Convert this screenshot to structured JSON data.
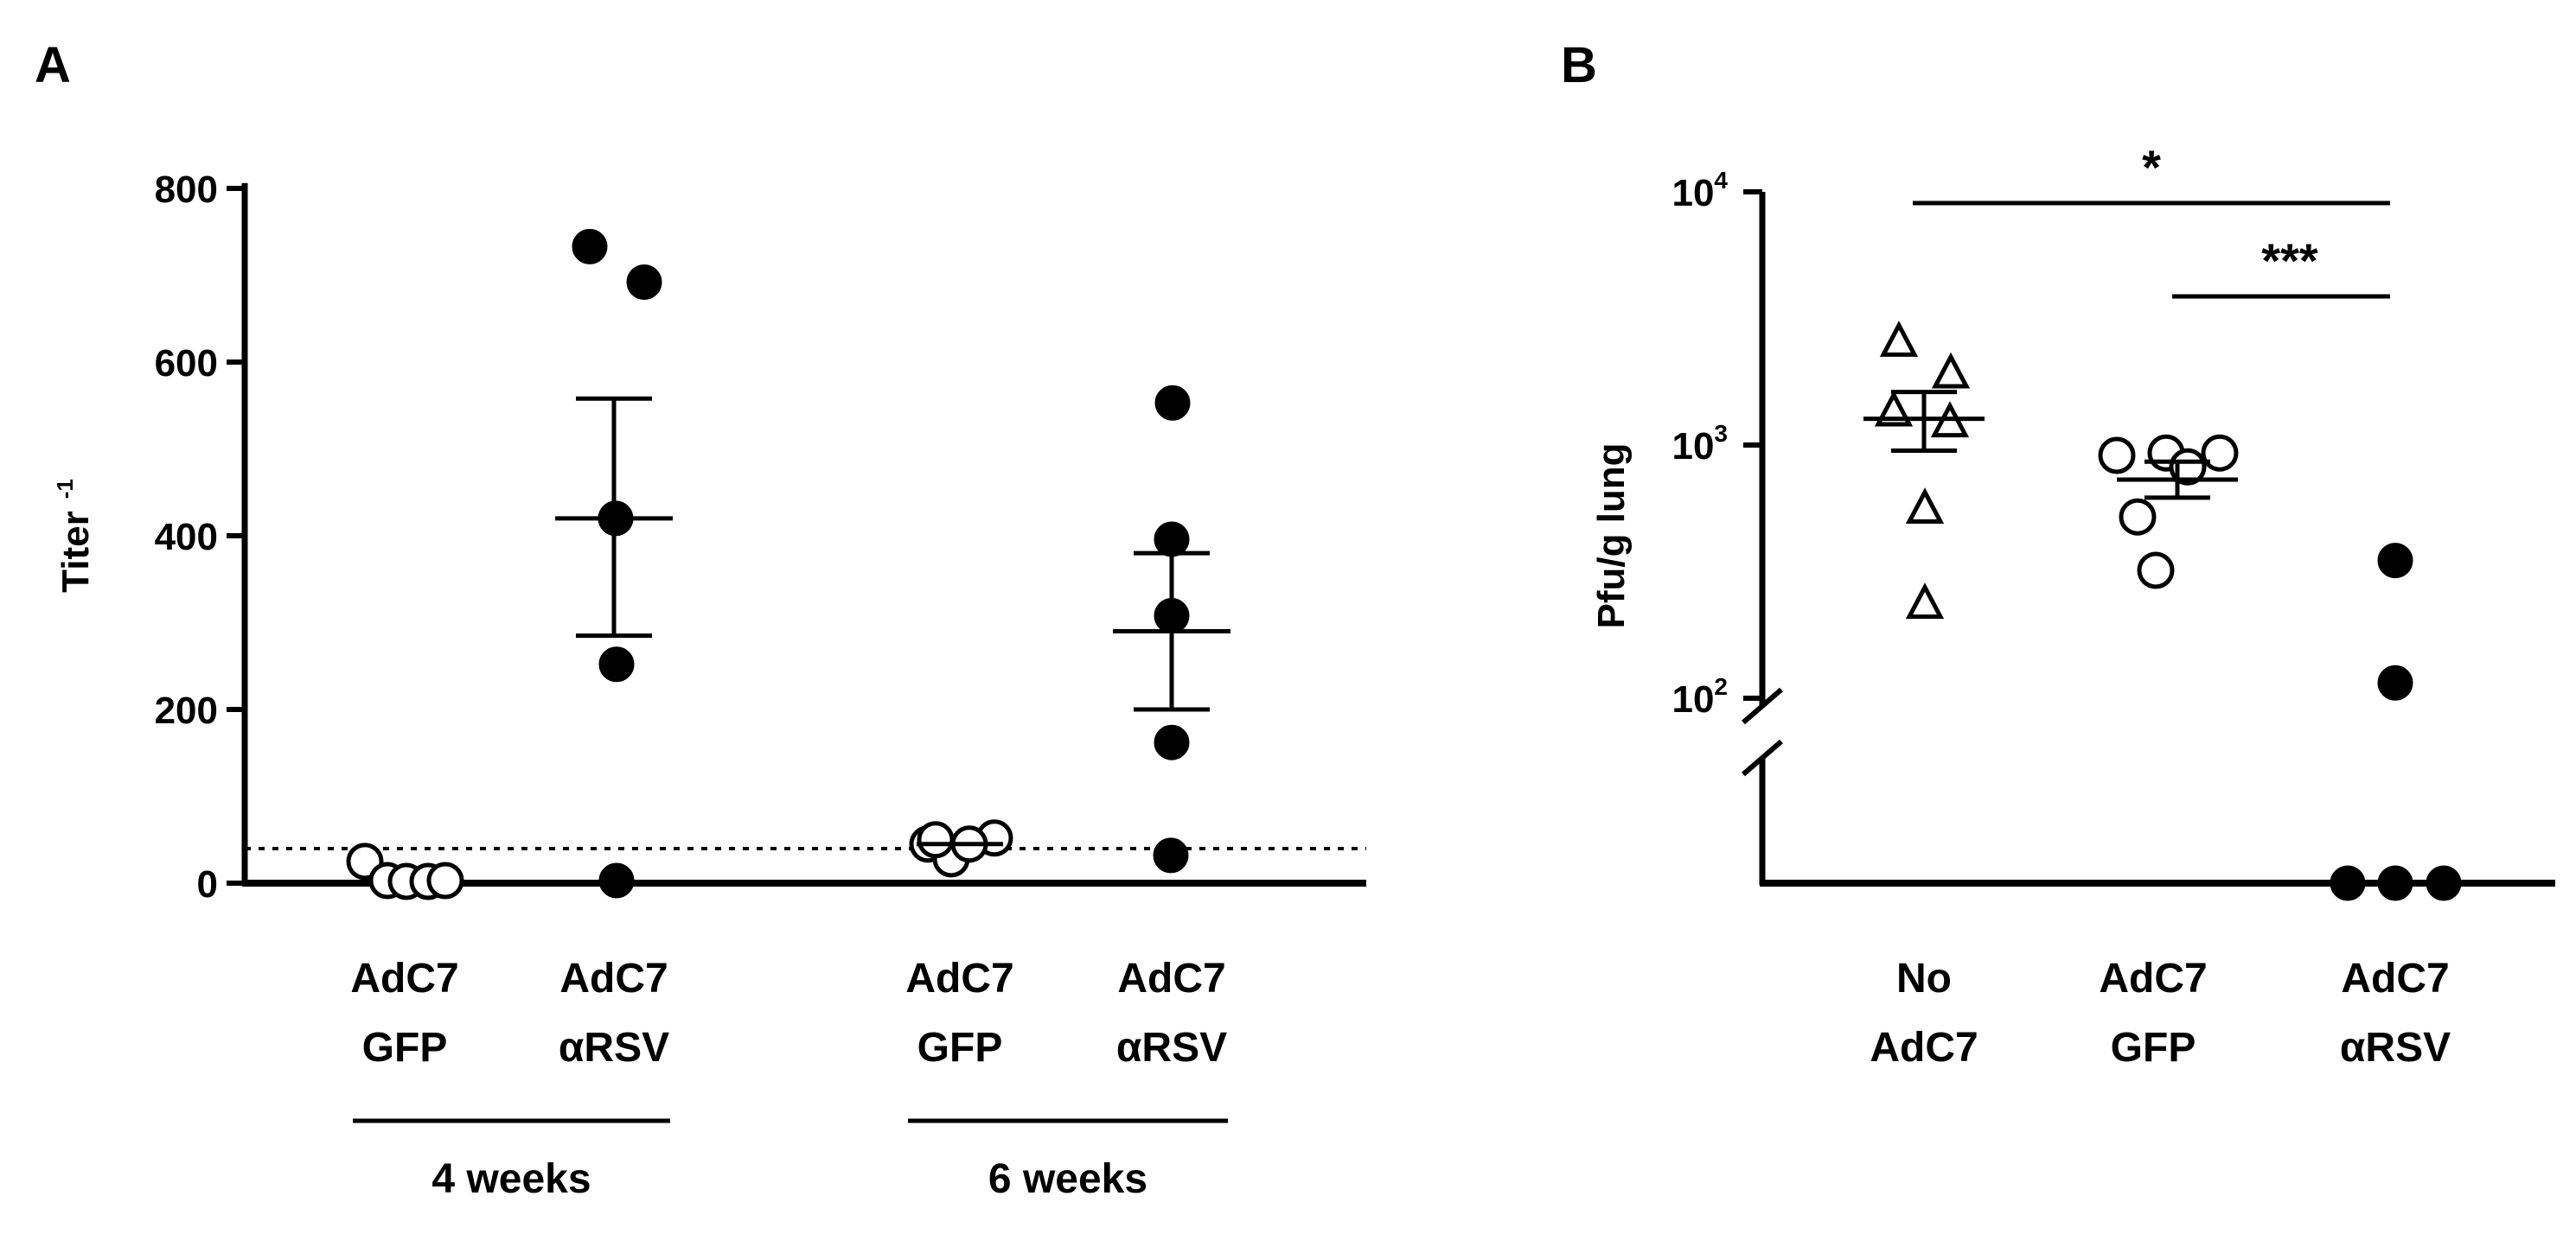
{
  "chart_data": [
    {
      "panel_label": "A",
      "type": "scatter",
      "ylabel": "Titer",
      "ylabel_superscript": "-1",
      "ylim": [
        0,
        800
      ],
      "yticks": [
        "0",
        "200",
        "400",
        "600",
        "800"
      ],
      "detection_limit": 40,
      "groups": [
        {
          "label_line1": "AdC7",
          "label_line2": "GFP",
          "marker": "open-circle",
          "values": [
            25,
            3,
            2,
            2,
            3
          ],
          "mean": null,
          "sem": null
        },
        {
          "label_line1": "AdC7",
          "label_line2": "αRSV",
          "marker": "filled-circle",
          "values": [
            733,
            692,
            420,
            252,
            3
          ],
          "mean": 420,
          "sem_low": 285,
          "sem_high": 558
        },
        {
          "label_line1": "AdC7",
          "label_line2": "GFP",
          "marker": "open-circle",
          "values": [
            45,
            52,
            28,
            45,
            50
          ],
          "mean": 45,
          "sem": null
        },
        {
          "label_line1": "AdC7",
          "label_line2": "αRSV",
          "marker": "filled-circle",
          "values": [
            553,
            396,
            308,
            162,
            32
          ],
          "mean": 290,
          "sem_low": 200,
          "sem_high": 380
        }
      ],
      "timepoints": [
        {
          "label": "4 weeks",
          "groups": [
            0,
            1
          ]
        },
        {
          "label": "6 weeks",
          "groups": [
            2,
            3
          ]
        }
      ]
    },
    {
      "panel_label": "B",
      "type": "scatter",
      "ylabel": "Pfu/g lung",
      "yscale": "log",
      "ylim": [
        100,
        10000
      ],
      "yticks": [
        {
          "base": "10",
          "exp": "2",
          "value": 100
        },
        {
          "base": "10",
          "exp": "3",
          "value": 1000
        },
        {
          "base": "10",
          "exp": "4",
          "value": 10000
        }
      ],
      "axis_break": true,
      "groups": [
        {
          "label_line1": "No",
          "label_line2": "AdC7",
          "marker": "open-triangle",
          "values": [
            2600,
            1950,
            1380,
            1250,
            570,
            240
          ],
          "mean": 1270,
          "sem_low": 950,
          "sem_high": 1620
        },
        {
          "label_line1": "AdC7",
          "label_line2": "GFP",
          "marker": "open-circle",
          "values": [
            930,
            930,
            910,
            820,
            520,
            320
          ],
          "mean": 730,
          "sem_low": 620,
          "sem_high": 860
        },
        {
          "label_line1": "AdC7",
          "label_line2": "αRSV",
          "marker": "filled-circle",
          "values": [
            350,
            115,
            "below-detection",
            "below-detection",
            "below-detection"
          ],
          "mean": null,
          "sem": null
        }
      ],
      "significance": [
        {
          "from_group": 0,
          "to_group": 2,
          "label": "*"
        },
        {
          "from_group": 1,
          "to_group": 2,
          "label": "***"
        }
      ]
    }
  ]
}
